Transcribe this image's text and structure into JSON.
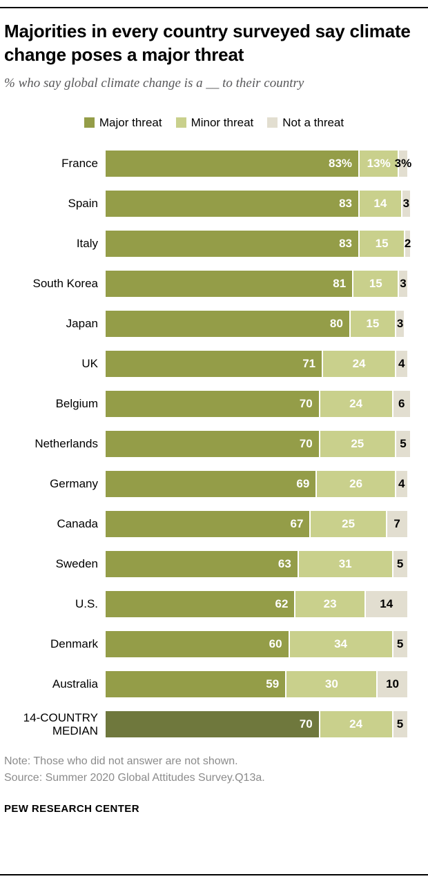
{
  "header": {
    "title": "Majorities in every country surveyed say climate change poses a major threat",
    "subtitle": "% who say global climate change is a __ to their country"
  },
  "legend": [
    {
      "label": "Major threat",
      "color": "#949d48"
    },
    {
      "label": "Minor threat",
      "color": "#c9d08c"
    },
    {
      "label": "Not a threat",
      "color": "#e2ded0"
    }
  ],
  "chart_data": {
    "type": "bar",
    "orientation": "horizontal-stacked",
    "title": "Majorities in every country surveyed say climate change poses a major threat",
    "subtitle": "% who say global climate change is a __ to their country",
    "xlim": [
      0,
      100
    ],
    "value_unit": "percent",
    "legend_position": "top-center",
    "grid": false,
    "colors": {
      "major": "#949d48",
      "minor": "#c9d08c",
      "none": "#e2ded0",
      "median_major": "#6f783d",
      "median_minor": "#c9d08c"
    },
    "categories": [
      "France",
      "Spain",
      "Italy",
      "South Korea",
      "Japan",
      "UK",
      "Belgium",
      "Netherlands",
      "Germany",
      "Canada",
      "Sweden",
      "U.S.",
      "Denmark",
      "Australia",
      "14-COUNTRY MEDIAN"
    ],
    "series": [
      {
        "name": "Major threat",
        "values": [
          83,
          83,
          83,
          81,
          80,
          71,
          70,
          70,
          69,
          67,
          63,
          62,
          60,
          59,
          70
        ]
      },
      {
        "name": "Minor threat",
        "values": [
          13,
          14,
          15,
          15,
          15,
          24,
          24,
          25,
          26,
          25,
          31,
          23,
          34,
          30,
          24
        ]
      },
      {
        "name": "Not a threat",
        "values": [
          3,
          3,
          2,
          3,
          3,
          4,
          6,
          5,
          4,
          7,
          5,
          14,
          5,
          10,
          5
        ]
      }
    ],
    "rows": [
      {
        "country": "France",
        "values": [
          83,
          13,
          3
        ],
        "labels": [
          "83%",
          "13%",
          "3%"
        ],
        "median": false
      },
      {
        "country": "Spain",
        "values": [
          83,
          14,
          3
        ],
        "labels": [
          "83",
          "14",
          "3"
        ],
        "median": false
      },
      {
        "country": "Italy",
        "values": [
          83,
          15,
          2
        ],
        "labels": [
          "83",
          "15",
          "2"
        ],
        "median": false
      },
      {
        "country": "South Korea",
        "values": [
          81,
          15,
          3
        ],
        "labels": [
          "81",
          "15",
          "3"
        ],
        "median": false
      },
      {
        "country": "Japan",
        "values": [
          80,
          15,
          3
        ],
        "labels": [
          "80",
          "15",
          "3"
        ],
        "median": false
      },
      {
        "country": "UK",
        "values": [
          71,
          24,
          4
        ],
        "labels": [
          "71",
          "24",
          "4"
        ],
        "median": false
      },
      {
        "country": "Belgium",
        "values": [
          70,
          24,
          6
        ],
        "labels": [
          "70",
          "24",
          "6"
        ],
        "median": false
      },
      {
        "country": "Netherlands",
        "values": [
          70,
          25,
          5
        ],
        "labels": [
          "70",
          "25",
          "5"
        ],
        "median": false
      },
      {
        "country": "Germany",
        "values": [
          69,
          26,
          4
        ],
        "labels": [
          "69",
          "26",
          "4"
        ],
        "median": false
      },
      {
        "country": "Canada",
        "values": [
          67,
          25,
          7
        ],
        "labels": [
          "67",
          "25",
          "7"
        ],
        "median": false
      },
      {
        "country": "Sweden",
        "values": [
          63,
          31,
          5
        ],
        "labels": [
          "63",
          "31",
          "5"
        ],
        "median": false
      },
      {
        "country": "U.S.",
        "values": [
          62,
          23,
          14
        ],
        "labels": [
          "62",
          "23",
          "14"
        ],
        "median": false
      },
      {
        "country": "Denmark",
        "values": [
          60,
          34,
          5
        ],
        "labels": [
          "60",
          "34",
          "5"
        ],
        "median": false
      },
      {
        "country": "Australia",
        "values": [
          59,
          30,
          10
        ],
        "labels": [
          "59",
          "30",
          "10"
        ],
        "median": false
      },
      {
        "country": "14-COUNTRY MEDIAN",
        "values": [
          70,
          24,
          5
        ],
        "labels": [
          "70",
          "24",
          "5"
        ],
        "median": true
      }
    ]
  },
  "footer": {
    "note": "Note: Those who did not answer are not shown.",
    "source": "Source: Summer 2020 Global Attitudes Survey.Q13a.",
    "brand": "PEW RESEARCH CENTER"
  }
}
